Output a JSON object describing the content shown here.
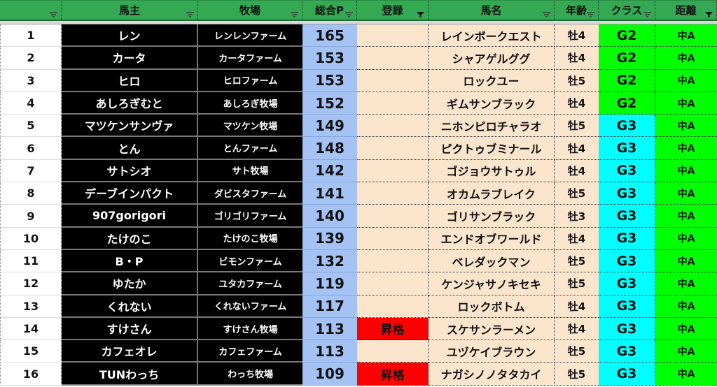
{
  "headers": [
    {
      "label": "",
      "filter": "inactive"
    },
    {
      "label": "馬主",
      "filter": "inactive"
    },
    {
      "label": "牧場",
      "filter": "inactive"
    },
    {
      "label": "総合P",
      "filter": "inactive"
    },
    {
      "label": "登録",
      "filter": "active"
    },
    {
      "label": "馬名",
      "filter": "inactive"
    },
    {
      "label": "年齢",
      "filter": "inactive"
    },
    {
      "label": "クラス",
      "filter": "inactive"
    },
    {
      "label": "距離",
      "filter": "active"
    }
  ],
  "colors": {
    "header": "#34a853",
    "points": "#a4c2f4",
    "peach": "#fce5cd",
    "promoted": "#ff0000",
    "g2": "#00ff00",
    "g3": "#00ffff",
    "distance": "#00ff00"
  },
  "rows": [
    {
      "rank": "1",
      "owner": "レン",
      "farm": "レンレンファーム",
      "points": "165",
      "reg": "",
      "horse": "レインボークエスト",
      "age": "牡4",
      "class": "G2",
      "dist": "中A"
    },
    {
      "rank": "2",
      "owner": "カータ",
      "farm": "カータファーム",
      "points": "153",
      "reg": "",
      "horse": "シャアゲルググ",
      "age": "牡4",
      "class": "G2",
      "dist": "中A"
    },
    {
      "rank": "3",
      "owner": "ヒロ",
      "farm": "ヒロファーム",
      "points": "153",
      "reg": "",
      "horse": "ロックユー",
      "age": "牡5",
      "class": "G2",
      "dist": "中A"
    },
    {
      "rank": "4",
      "owner": "あしろぎむと",
      "farm": "あしろぎ牧場",
      "points": "152",
      "reg": "",
      "horse": "ギムサンブラック",
      "age": "牡4",
      "class": "G2",
      "dist": "中A"
    },
    {
      "rank": "5",
      "owner": "マツケンサンヴァ",
      "farm": "マツケン牧場",
      "points": "149",
      "reg": "",
      "horse": "ニホンピロチャラオ",
      "age": "牡5",
      "class": "G3",
      "dist": "中A"
    },
    {
      "rank": "6",
      "owner": "とん",
      "farm": "とんファーム",
      "points": "148",
      "reg": "",
      "horse": "ピクトゥブミナール",
      "age": "牡4",
      "class": "G3",
      "dist": "中A"
    },
    {
      "rank": "7",
      "owner": "サトシオ",
      "farm": "サト牧場",
      "points": "142",
      "reg": "",
      "horse": "ゴジョウサトゥル",
      "age": "牡4",
      "class": "G3",
      "dist": "中A"
    },
    {
      "rank": "8",
      "owner": "デーブインパクト",
      "farm": "ダビスタファーム",
      "points": "141",
      "reg": "",
      "horse": "オカムラブレイク",
      "age": "牡5",
      "class": "G3",
      "dist": "中A"
    },
    {
      "rank": "9",
      "owner": "907gorigori",
      "farm": "ゴリゴリファーム",
      "points": "140",
      "reg": "",
      "horse": "ゴリサンブラック",
      "age": "牡3",
      "class": "G3",
      "dist": "中A"
    },
    {
      "rank": "10",
      "owner": "たけのこ",
      "farm": "たけのこ牧場",
      "points": "139",
      "reg": "",
      "horse": "エンドオブワールド",
      "age": "牡4",
      "class": "G3",
      "dist": "中A"
    },
    {
      "rank": "11",
      "owner": "B・P",
      "farm": "ビモンファーム",
      "points": "132",
      "reg": "",
      "horse": "ベレダックマン",
      "age": "牡5",
      "class": "G3",
      "dist": "中A"
    },
    {
      "rank": "12",
      "owner": "ゆたか",
      "farm": "ユタカファーム",
      "points": "119",
      "reg": "",
      "horse": "ケンジャサノキセキ",
      "age": "牡5",
      "class": "G3",
      "dist": "中A"
    },
    {
      "rank": "13",
      "owner": "くれない",
      "farm": "くれないファーム",
      "points": "117",
      "reg": "",
      "horse": "ロックボトム",
      "age": "牡4",
      "class": "G3",
      "dist": "中A"
    },
    {
      "rank": "14",
      "owner": "すけさん",
      "farm": "すけさん牧場",
      "points": "113",
      "reg": "昇格",
      "horse": "スケサンラーメン",
      "age": "牡4",
      "class": "G3",
      "dist": "中A"
    },
    {
      "rank": "15",
      "owner": "カフェオレ",
      "farm": "カフェファーム",
      "points": "113",
      "reg": "",
      "horse": "ユヅケイブラウン",
      "age": "牡5",
      "class": "G3",
      "dist": "中A"
    },
    {
      "rank": "16",
      "owner": "TUNわっち",
      "farm": "わっち牧場",
      "points": "109",
      "reg": "昇格",
      "horse": "ナガシノノタタカイ",
      "age": "牡5",
      "class": "G3",
      "dist": "中A"
    }
  ]
}
